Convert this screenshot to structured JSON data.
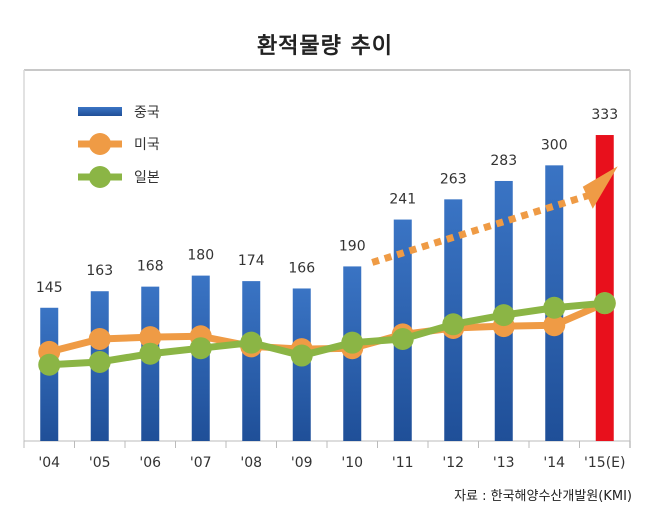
{
  "chart_data": {
    "type": "bar",
    "title": "환적물량 추이",
    "xlabel": "",
    "ylabel": "",
    "categories": [
      "'04",
      "'05",
      "'06",
      "'07",
      "'08",
      "'09",
      "'10",
      "'11",
      "'12",
      "'13",
      "'14",
      "'15(E)"
    ],
    "ylim": [
      0,
      345
    ],
    "grid": false,
    "legend_position": "top-left",
    "series": [
      {
        "name": "중국",
        "type": "bar",
        "color": "#2a5ca8",
        "highlight_color": "#e8101c",
        "highlight_index": 11,
        "values": [
          145,
          163,
          168,
          180,
          174,
          166,
          190,
          241,
          263,
          283,
          300,
          333
        ],
        "labels_shown": true
      },
      {
        "name": "미국",
        "type": "line",
        "color": "#ef9b45",
        "values": [
          97,
          111,
          113,
          114,
          103,
          100,
          101,
          116,
          123,
          125,
          126,
          150
        ],
        "labels_shown": false,
        "estimated": true
      },
      {
        "name": "일본",
        "type": "line",
        "color": "#8bb545",
        "values": [
          83,
          86,
          95,
          101,
          107,
          93,
          107,
          111,
          127,
          137,
          145,
          150
        ],
        "labels_shown": false,
        "estimated": true
      }
    ],
    "annotations": [
      {
        "type": "trend-arrow",
        "style": "dotted",
        "color": "#ef9b45",
        "from_category": "'10",
        "to_category": "'15(E)"
      }
    ],
    "source": "자료 : 한국해양수산개발원(KMI)"
  }
}
